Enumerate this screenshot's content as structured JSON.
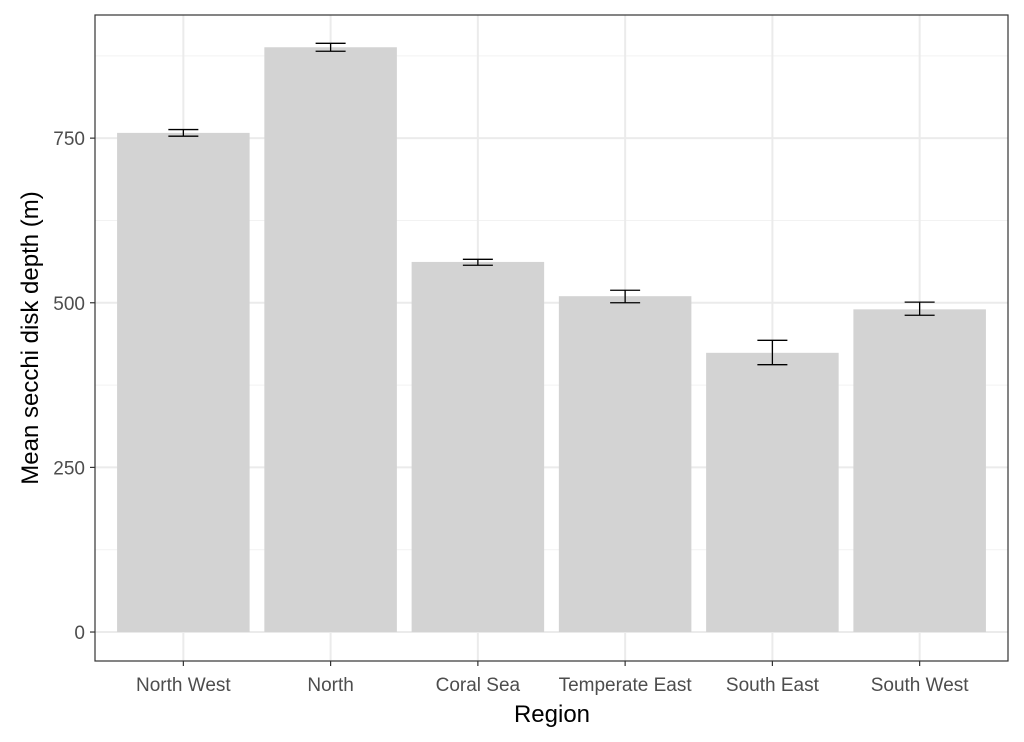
{
  "chart_data": {
    "type": "bar",
    "title": "",
    "xlabel": "Region",
    "ylabel": "Mean secchi disk depth (m)",
    "categories": [
      "North West",
      "North",
      "Coral Sea",
      "Temperate East",
      "South East",
      "South West"
    ],
    "values": [
      758,
      888,
      562,
      510,
      424,
      490
    ],
    "error_low": [
      753,
      882,
      557,
      500,
      406,
      481
    ],
    "error_high": [
      763,
      894,
      566,
      519,
      443,
      501
    ],
    "yticks": [
      0,
      250,
      500,
      750
    ],
    "ytick_labels": [
      "0",
      "250",
      "500",
      "750"
    ],
    "ylim": [
      -44,
      937
    ],
    "grid": true,
    "bar_color": "#d3d3d3",
    "errorbar_color": "#000000"
  }
}
